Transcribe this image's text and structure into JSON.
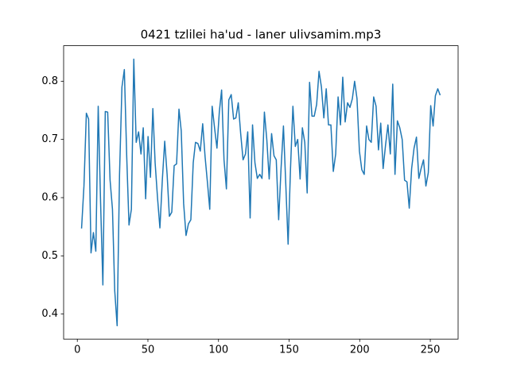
{
  "chart_data": {
    "type": "line",
    "title": "0421 tzlilei ha'ud - laner ulivsamim.mp3",
    "color": "#1f77b4",
    "xlim": [
      -9.7,
      269.7
    ],
    "xticks": [
      0,
      50,
      100,
      150,
      200,
      250
    ],
    "ylim": [
      0.357,
      0.861
    ],
    "yticks": [
      0.4,
      0.5,
      0.6,
      0.7,
      0.8
    ],
    "x": [
      3.0,
      4.7,
      6.4,
      8.0,
      9.7,
      11.4,
      13.1,
      14.8,
      16.5,
      18.1,
      19.8,
      21.5,
      23.2,
      24.9,
      26.5,
      28.2,
      29.9,
      31.6,
      33.3,
      35.0,
      36.6,
      38.3,
      40.0,
      41.7,
      43.4,
      45.1,
      46.7,
      48.4,
      50.1,
      51.8,
      53.5,
      55.1,
      56.8,
      58.5,
      60.2,
      61.9,
      63.6,
      65.2,
      66.9,
      68.6,
      70.3,
      72.0,
      73.6,
      75.3,
      77.0,
      78.7,
      80.4,
      82.1,
      83.7,
      85.4,
      87.1,
      88.8,
      90.5,
      92.2,
      93.8,
      95.5,
      97.2,
      98.9,
      100.6,
      102.2,
      103.9,
      105.6,
      107.3,
      109.0,
      110.7,
      112.3,
      114.0,
      115.7,
      117.4,
      119.1,
      120.7,
      122.4,
      124.1,
      125.8,
      127.5,
      129.2,
      130.8,
      132.5,
      134.2,
      135.9,
      137.6,
      139.3,
      140.9,
      142.6,
      144.3,
      146.0,
      147.7,
      149.3,
      151.0,
      152.7,
      154.4,
      156.1,
      157.8,
      159.4,
      161.1,
      162.8,
      164.5,
      166.2,
      167.8,
      169.5,
      171.2,
      172.9,
      174.6,
      176.3,
      177.9,
      179.6,
      181.3,
      183.0,
      184.7,
      186.4,
      188.0,
      189.7,
      191.4,
      193.1,
      194.8,
      196.4,
      198.1,
      199.8,
      201.5,
      203.2,
      204.9,
      206.5,
      208.2,
      209.9,
      211.6,
      213.3,
      214.9,
      216.6,
      218.3,
      220.0,
      221.7,
      223.4,
      225.0,
      226.7,
      228.4,
      230.1,
      231.8,
      233.5,
      235.1,
      236.8,
      238.5,
      240.2,
      241.9,
      243.5,
      245.2,
      246.9,
      248.6,
      250.3,
      252.0,
      253.6,
      255.3,
      257.0
    ],
    "values": [
      0.547,
      0.62,
      0.745,
      0.735,
      0.505,
      0.54,
      0.508,
      0.757,
      0.59,
      0.45,
      0.748,
      0.747,
      0.63,
      0.58,
      0.44,
      0.38,
      0.64,
      0.79,
      0.82,
      0.67,
      0.553,
      0.58,
      0.838,
      0.695,
      0.713,
      0.675,
      0.72,
      0.598,
      0.705,
      0.635,
      0.753,
      0.66,
      0.6,
      0.548,
      0.63,
      0.697,
      0.64,
      0.568,
      0.575,
      0.655,
      0.658,
      0.752,
      0.715,
      0.59,
      0.535,
      0.555,
      0.562,
      0.66,
      0.695,
      0.693,
      0.68,
      0.727,
      0.67,
      0.625,
      0.58,
      0.757,
      0.72,
      0.685,
      0.748,
      0.785,
      0.665,
      0.615,
      0.768,
      0.777,
      0.735,
      0.737,
      0.763,
      0.71,
      0.665,
      0.675,
      0.713,
      0.565,
      0.725,
      0.66,
      0.633,
      0.64,
      0.633,
      0.747,
      0.7,
      0.632,
      0.71,
      0.672,
      0.665,
      0.562,
      0.65,
      0.723,
      0.62,
      0.52,
      0.65,
      0.757,
      0.688,
      0.7,
      0.632,
      0.72,
      0.695,
      0.608,
      0.798,
      0.74,
      0.74,
      0.76,
      0.817,
      0.79,
      0.737,
      0.787,
      0.725,
      0.725,
      0.645,
      0.675,
      0.773,
      0.725,
      0.807,
      0.73,
      0.763,
      0.755,
      0.77,
      0.8,
      0.77,
      0.68,
      0.648,
      0.64,
      0.723,
      0.7,
      0.695,
      0.773,
      0.757,
      0.682,
      0.728,
      0.65,
      0.69,
      0.725,
      0.675,
      0.795,
      0.64,
      0.732,
      0.72,
      0.7,
      0.63,
      0.627,
      0.582,
      0.65,
      0.685,
      0.704,
      0.633,
      0.65,
      0.665,
      0.62,
      0.643,
      0.758,
      0.723,
      0.775,
      0.787,
      0.776
    ]
  }
}
